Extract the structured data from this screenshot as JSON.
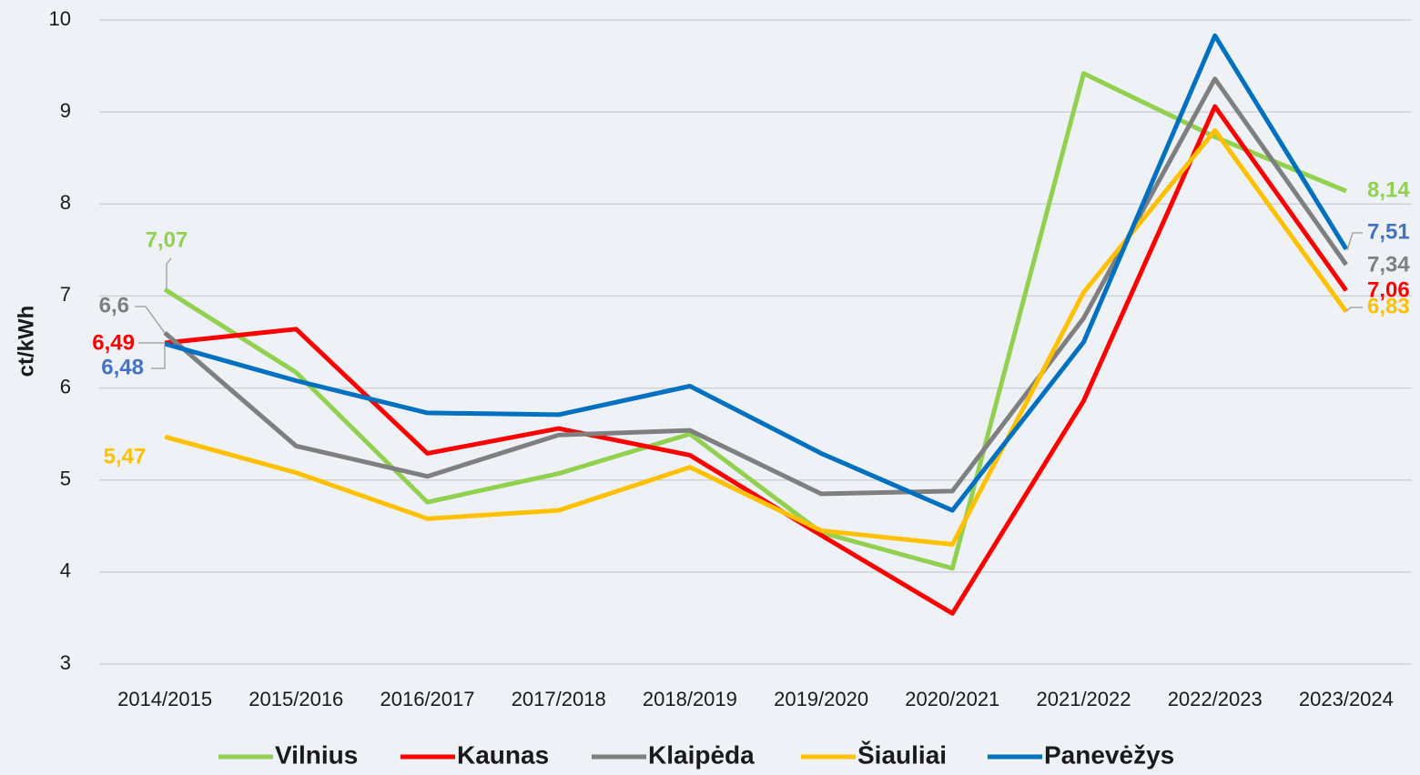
{
  "chart_data": {
    "type": "line",
    "y_label": "ct/kWh",
    "categories": [
      "2014/2015",
      "2015/2016",
      "2016/2017",
      "2017/2018",
      "2018/2019",
      "2019/2020",
      "2020/2021",
      "2021/2022",
      "2022/2023",
      "2023/2024"
    ],
    "series": [
      {
        "name": "Vilnius",
        "color": "#92d050",
        "values": [
          7.07,
          6.17,
          4.76,
          5.07,
          5.5,
          4.43,
          4.04,
          9.42,
          8.73,
          8.14
        ],
        "value_labels": [
          "7,07",
          null,
          null,
          null,
          null,
          null,
          null,
          null,
          null,
          "8,14"
        ]
      },
      {
        "name": "Kaunas",
        "color": "#ff0000",
        "values": [
          6.49,
          6.64,
          5.29,
          5.56,
          5.27,
          4.4,
          3.55,
          5.86,
          9.06,
          7.06
        ],
        "value_labels": [
          "6,49",
          null,
          null,
          null,
          null,
          null,
          null,
          null,
          null,
          "7,06"
        ]
      },
      {
        "name": "Klaipėda",
        "color": "#7f7f7f",
        "values": [
          6.6,
          5.37,
          5.04,
          5.49,
          5.54,
          4.85,
          4.88,
          6.76,
          9.36,
          7.34
        ],
        "value_labels": [
          "6,6",
          null,
          null,
          null,
          null,
          null,
          null,
          null,
          null,
          "7,34"
        ]
      },
      {
        "name": "Šiauliai",
        "color": "#ffc000",
        "values": [
          5.47,
          5.08,
          4.58,
          4.67,
          5.14,
          4.45,
          4.3,
          7.04,
          8.8,
          6.83
        ],
        "value_labels": [
          "5,47",
          null,
          null,
          null,
          null,
          null,
          null,
          null,
          null,
          "6,83"
        ]
      },
      {
        "name": "Panevėžys",
        "color": "#0070c0",
        "values": [
          6.48,
          6.08,
          5.73,
          5.71,
          6.02,
          5.29,
          4.67,
          6.5,
          9.83,
          7.51
        ],
        "value_labels": [
          "6,48",
          null,
          null,
          null,
          null,
          null,
          null,
          null,
          null,
          "7,51"
        ]
      }
    ],
    "ylim": [
      3,
      10
    ],
    "yticks": [
      3,
      4,
      5,
      6,
      7,
      8,
      9,
      10
    ],
    "grid": true,
    "legend": "bottom"
  }
}
